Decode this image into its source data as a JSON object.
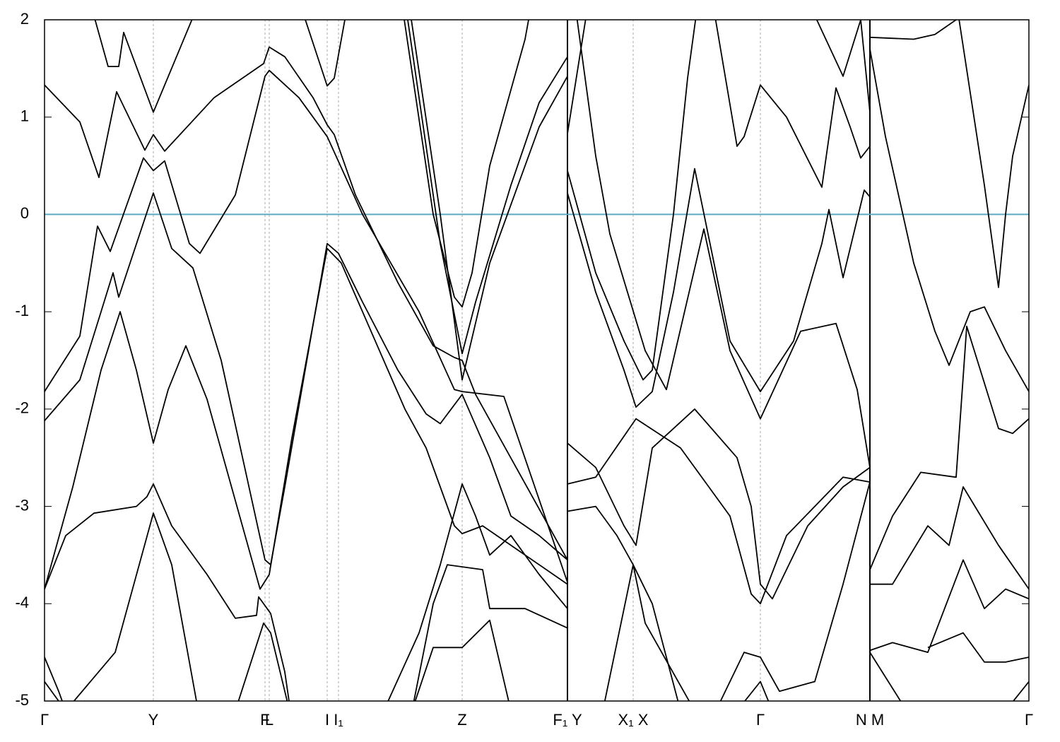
{
  "chart_data": {
    "type": "line",
    "line_color": "#000000",
    "xlim": [
      0,
      13.93
    ],
    "ylim": [
      -5,
      2
    ],
    "yticks": [
      -5,
      -4,
      -3,
      -2,
      -1,
      0,
      1,
      2
    ],
    "xticks": [
      {
        "value": 0,
        "label": "Γ"
      },
      {
        "value": 1.54,
        "label": "Y"
      },
      {
        "value": 3.12,
        "label": "F"
      },
      {
        "value": 3.18,
        "label": "L"
      },
      {
        "value": 4.0,
        "label": "I"
      },
      {
        "value": 4.16,
        "label": "I₁"
      },
      {
        "value": 5.91,
        "label": "Z"
      },
      {
        "value": 7.4,
        "label": "F₁ Y"
      },
      {
        "value": 8.33,
        "label": "X₁ X"
      },
      {
        "value": 10.13,
        "label": "Γ"
      },
      {
        "value": 11.68,
        "label": "N M"
      },
      {
        "value": 13.93,
        "label": "Γ"
      }
    ],
    "grid": true,
    "path_breaks": [
      7.4,
      11.68
    ],
    "fermi_level": 0,
    "fermi_color": "#5aabc5",
    "series": [
      {
        "x": [
          0,
          0.5,
          0.77,
          1.02,
          1.42,
          1.54,
          1.7,
          2.4,
          3.1,
          3.18,
          3.4,
          3.8,
          4.0,
          4.1,
          4.4,
          5.0,
          5.5,
          5.8,
          5.91,
          6.1,
          7.4
        ],
        "values": [
          1.33,
          0.95,
          0.38,
          1.26,
          0.66,
          0.82,
          0.65,
          1.2,
          1.55,
          1.72,
          1.62,
          1.2,
          0.92,
          0.82,
          0.2,
          -0.7,
          -1.35,
          -1.47,
          -1.5,
          -1.85,
          -3.55
        ]
      },
      {
        "x": [
          0.6,
          0.9,
          1.05,
          1.12,
          1.54,
          2.2
        ],
        "values": [
          2.3,
          1.52,
          1.52,
          1.87,
          1.05,
          2.2
        ]
      },
      {
        "x": [
          0,
          0.5,
          0.75,
          0.93,
          1.4,
          1.54,
          1.7,
          2.05,
          2.2,
          2.7,
          3.12,
          3.18,
          3.6,
          4.0,
          4.5,
          5.3,
          5.8,
          5.91,
          6.5,
          7.4
        ],
        "values": [
          -1.82,
          -1.25,
          -0.12,
          -0.38,
          0.58,
          0.45,
          0.55,
          -0.3,
          -0.4,
          0.2,
          1.42,
          1.48,
          1.2,
          0.8,
          0.0,
          -1.0,
          -1.8,
          -1.82,
          -1.87,
          -3.78
        ]
      },
      {
        "x": [
          0,
          0.5,
          0.8,
          0.97,
          1.05,
          1.54,
          1.8,
          2.1,
          2.5,
          3.12,
          3.2,
          3.4,
          4.0,
          4.16,
          4.5,
          5.0,
          5.4,
          5.6,
          5.91,
          6.3,
          6.6,
          7.0,
          7.4
        ],
        "values": [
          -2.12,
          -1.7,
          -1.0,
          -0.6,
          -0.85,
          0.22,
          -0.35,
          -0.55,
          -1.5,
          -3.55,
          -3.6,
          -2.8,
          -0.3,
          -0.4,
          -0.9,
          -1.6,
          -2.05,
          -2.15,
          -1.85,
          -2.5,
          -3.1,
          -3.3,
          -3.55
        ]
      },
      {
        "x": [
          0,
          0.3,
          0.7,
          1.3,
          1.45,
          1.54,
          1.8,
          2.3,
          2.7,
          3.0,
          3.03,
          3.2,
          3.4,
          3.5
        ],
        "values": [
          -3.85,
          -3.3,
          -3.07,
          -3.0,
          -2.9,
          -2.77,
          -3.2,
          -3.7,
          -4.15,
          -4.12,
          -3.93,
          -4.1,
          -4.7,
          -5.2
        ]
      },
      {
        "x": [
          0,
          0.4,
          0.8,
          1.07,
          1.3,
          1.54,
          1.75,
          2.0,
          2.3,
          2.8,
          3.05,
          3.18,
          3.5,
          4.0,
          4.2,
          4.8,
          5.1,
          5.4,
          5.8,
          5.91,
          6.2,
          6.7,
          7.4
        ],
        "values": [
          -3.85,
          -2.8,
          -1.6,
          -1.0,
          -1.6,
          -2.35,
          -1.8,
          -1.35,
          -1.9,
          -3.2,
          -3.85,
          -3.7,
          -2.3,
          -0.35,
          -0.5,
          -1.5,
          -2.0,
          -2.4,
          -3.2,
          -3.28,
          -3.2,
          -3.45,
          -3.8
        ]
      },
      {
        "x": [
          0,
          0.2,
          0.35
        ],
        "values": [
          -4.55,
          -4.9,
          -5.2
        ]
      },
      {
        "x": [
          0,
          0.3
        ],
        "values": [
          -4.8,
          -5.1
        ]
      },
      {
        "x": [
          0.3,
          1.0,
          1.54,
          1.8,
          2.2
        ],
        "values": [
          -5.1,
          -4.5,
          -3.07,
          -3.6,
          -5.2
        ]
      },
      {
        "x": [
          2.7,
          3.1,
          3.2,
          3.5
        ],
        "values": [
          -5.1,
          -4.2,
          -4.3,
          -5.2
        ]
      },
      {
        "x": [
          3.6,
          4.0,
          4.1,
          4.3
        ],
        "values": [
          2.2,
          1.32,
          1.4,
          2.2
        ]
      },
      {
        "x": [
          5.05,
          5.5,
          5.8,
          5.91,
          6.05,
          6.3,
          6.8,
          6.9
        ],
        "values": [
          2.2,
          0.0,
          -0.85,
          -0.95,
          -0.6,
          0.5,
          1.8,
          2.2
        ]
      },
      {
        "x": [
          5.1,
          5.6,
          5.91,
          6.1,
          6.6,
          7.0,
          7.4
        ],
        "values": [
          2.2,
          -0.3,
          -1.43,
          -0.9,
          0.3,
          1.15,
          1.62
        ]
      },
      {
        "x": [
          5.15,
          5.6,
          5.91,
          6.3,
          7.0,
          7.4
        ],
        "values": [
          2.2,
          0.0,
          -1.7,
          -0.5,
          0.9,
          1.42
        ]
      },
      {
        "x": [
          4.8,
          5.3,
          5.6,
          5.91,
          6.1,
          6.3,
          6.6,
          7.0,
          7.4
        ],
        "values": [
          -5.1,
          -4.3,
          -3.6,
          -2.77,
          -3.1,
          -3.5,
          -3.3,
          -3.7,
          -4.05
        ]
      },
      {
        "x": [
          5.2,
          5.5,
          5.7,
          6.2,
          6.3,
          6.8,
          7.4
        ],
        "values": [
          -5.1,
          -4.0,
          -3.6,
          -3.65,
          -4.05,
          -4.05,
          -4.25
        ]
      },
      {
        "x": [
          5.2,
          5.5,
          5.91,
          6.3,
          6.6
        ],
        "values": [
          -5.1,
          -4.45,
          -4.45,
          -4.17,
          -5.1
        ]
      },
      {
        "x": [
          7.4,
          7.7
        ],
        "values": [
          0.83,
          2.2
        ]
      },
      {
        "x": [
          7.4,
          7.8,
          8.2,
          8.47,
          8.6,
          8.9,
          9.1,
          9.25
        ],
        "values": [
          0.45,
          -0.6,
          -1.3,
          -1.7,
          -1.6,
          0.0,
          1.4,
          2.2
        ]
      },
      {
        "x": [
          7.4,
          7.8,
          8.2,
          8.37,
          8.6,
          8.9,
          9.2,
          9.7,
          10.13,
          10.6,
          11.0,
          11.1,
          11.3,
          11.6,
          11.68
        ],
        "values": [
          0.22,
          -0.8,
          -1.6,
          -1.98,
          -1.82,
          -0.8,
          0.47,
          -1.3,
          -1.82,
          -1.3,
          -0.3,
          0.05,
          -0.65,
          0.25,
          0.18
        ]
      },
      {
        "x": [
          7.5,
          7.8,
          8.0,
          8.5,
          8.8,
          9.33,
          9.7,
          10.13,
          10.7,
          11.2,
          11.5,
          11.68
        ],
        "values": [
          2.2,
          0.6,
          -0.2,
          -1.4,
          -1.8,
          -0.15,
          -1.4,
          -2.1,
          -1.2,
          -1.12,
          -1.8,
          -2.6
        ]
      },
      {
        "x": [
          9.45,
          9.8,
          9.9,
          10.13,
          10.5,
          11.0,
          11.2,
          11.4,
          11.55,
          11.68
        ],
        "values": [
          2.2,
          0.7,
          0.8,
          1.33,
          1.0,
          0.28,
          1.3,
          0.9,
          0.58,
          0.7
        ]
      },
      {
        "x": [
          10.8,
          11.3,
          11.55,
          11.68
        ],
        "values": [
          2.2,
          1.42,
          2.0,
          1.05
        ]
      },
      {
        "x": [
          7.4,
          7.8,
          8.2,
          8.37,
          8.6,
          9.2,
          9.8,
          10.0,
          10.13,
          10.3,
          10.8,
          11.3,
          11.68
        ],
        "values": [
          -2.35,
          -2.6,
          -3.2,
          -3.4,
          -2.4,
          -2.0,
          -2.5,
          -3.0,
          -3.8,
          -3.95,
          -3.2,
          -2.8,
          -2.6
        ]
      },
      {
        "x": [
          7.4,
          7.8,
          8.37,
          9.0,
          9.7,
          10.0,
          10.13,
          10.5,
          11.3,
          11.68
        ],
        "values": [
          -2.77,
          -2.7,
          -2.1,
          -2.4,
          -3.1,
          -3.9,
          -4.0,
          -3.3,
          -2.7,
          -2.75
        ]
      },
      {
        "x": [
          7.4,
          7.8,
          8.1,
          8.33,
          8.6,
          9.0
        ],
        "values": [
          -3.05,
          -3.0,
          -3.3,
          -3.6,
          -4.0,
          -5.1
        ]
      },
      {
        "x": [
          7.9,
          8.33,
          8.5,
          9.2
        ],
        "values": [
          -5.1,
          -3.6,
          -4.2,
          -5.1
        ]
      },
      {
        "x": [
          9.5,
          9.9,
          10.13,
          10.4,
          10.9,
          11.3,
          11.68
        ],
        "values": [
          -5.1,
          -4.5,
          -4.55,
          -4.9,
          -4.8,
          -3.8,
          -2.75
        ]
      },
      {
        "x": [
          9.8,
          10.13,
          10.3
        ],
        "values": [
          -5.1,
          -4.8,
          -5.1
        ]
      },
      {
        "x": [
          11.68,
          12.3,
          12.6,
          12.9
        ],
        "values": [
          1.82,
          1.8,
          1.85,
          2.0
        ]
      },
      {
        "x": [
          11.68,
          11.9,
          12.3,
          12.6,
          12.8,
          13.1,
          13.3,
          13.6,
          13.93
        ],
        "values": [
          1.7,
          0.8,
          -0.5,
          -1.2,
          -1.55,
          -1.0,
          -0.95,
          -1.4,
          -1.82
        ]
      },
      {
        "x": [
          12.9,
          13.3,
          13.5,
          13.6,
          13.7,
          13.93
        ],
        "values": [
          2.2,
          0.3,
          -0.75,
          0.0,
          0.6,
          1.33
        ]
      },
      {
        "x": [
          11.68,
          12.0,
          12.4,
          12.9,
          13.05,
          13.2,
          13.5,
          13.7,
          13.93
        ],
        "values": [
          -3.65,
          -3.1,
          -2.65,
          -2.7,
          -1.15,
          -1.5,
          -2.2,
          -2.25,
          -2.1
        ]
      },
      {
        "x": [
          11.68,
          12.0,
          12.5,
          12.8,
          13.0,
          13.5,
          13.93
        ],
        "values": [
          -3.8,
          -3.8,
          -3.2,
          -3.4,
          -2.8,
          -3.4,
          -3.85
        ]
      },
      {
        "x": [
          11.68,
          12.0,
          12.5,
          13.0,
          13.3,
          13.6,
          13.93
        ],
        "values": [
          -4.48,
          -4.4,
          -4.5,
          -3.55,
          -4.05,
          -3.85,
          -3.95
        ]
      },
      {
        "x": [
          12.5,
          13.0,
          13.3,
          13.6,
          13.93
        ],
        "values": [
          -4.45,
          -4.3,
          -4.6,
          -4.6,
          -4.55
        ]
      },
      {
        "x": [
          13.6,
          13.93
        ],
        "values": [
          -5.1,
          -4.8
        ]
      },
      {
        "x": [
          11.68,
          12.2
        ],
        "values": [
          -4.5,
          -5.1
        ]
      }
    ]
  }
}
